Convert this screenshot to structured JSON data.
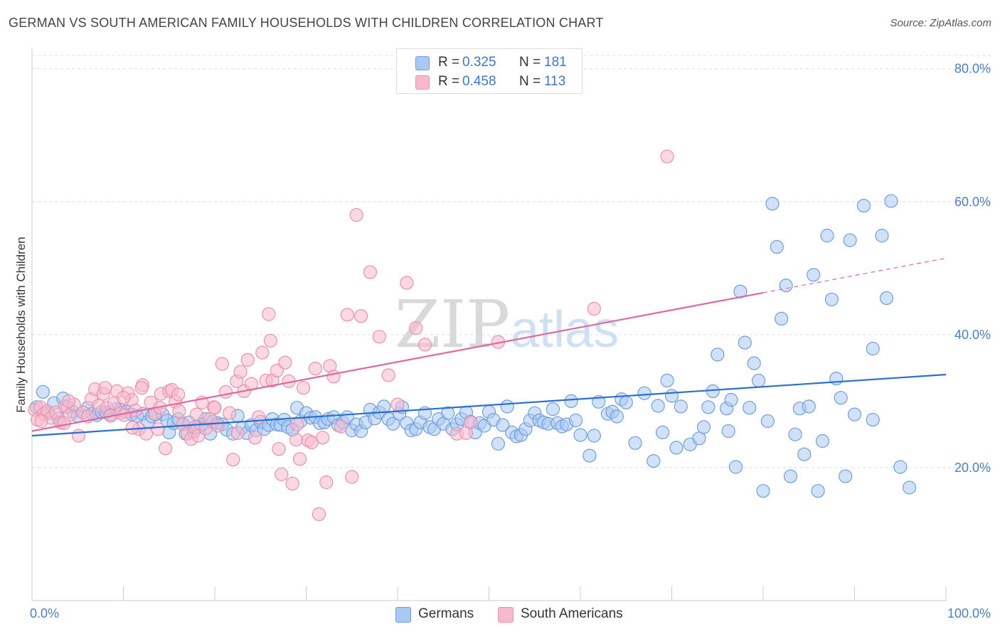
{
  "title": "GERMAN VS SOUTH AMERICAN FAMILY HOUSEHOLDS WITH CHILDREN CORRELATION CHART",
  "source": "Source: ZipAtlas.com",
  "watermark": {
    "zip": "ZIP",
    "atlas": "atlas"
  },
  "legend": {
    "rows": [
      {
        "r_label": "R =",
        "r_value": "0.325",
        "n_label": "N =",
        "n_value": "181",
        "color": "#a9c8f3"
      },
      {
        "r_label": "R =",
        "r_value": "0.458",
        "n_label": "N =",
        "n_value": "113",
        "color": "#f8b9cc"
      }
    ]
  },
  "bottom_legend": [
    {
      "label": "Germans",
      "color": "#a9c8f3"
    },
    {
      "label": "South Americans",
      "color": "#f8b9cc"
    }
  ],
  "colors": {
    "blue_fill": "#a9c8f3",
    "blue_stroke": "#6d9fe0",
    "blue_line": "#2a6fd2",
    "pink_fill": "#f8b9cc",
    "pink_stroke": "#ee8fac",
    "pink_line": "#e0689a",
    "tick_text": "#4a7fd0",
    "grid": "#dddddd"
  },
  "chart_data": {
    "type": "scatter",
    "title": "GERMAN VS SOUTH AMERICAN FAMILY HOUSEHOLDS WITH CHILDREN CORRELATION CHART",
    "xlabel": "",
    "ylabel": "Family Households with Children",
    "xlim": [
      0,
      100
    ],
    "ylim": [
      0,
      82
    ],
    "x_tick_labels": [
      {
        "value": 0,
        "label": "0.0%"
      },
      {
        "value": 100,
        "label": "100.0%"
      }
    ],
    "y_tick_labels": [
      {
        "value": 20,
        "label": "20.0%"
      },
      {
        "value": 40,
        "label": "40.0%"
      },
      {
        "value": 60,
        "label": "60.0%"
      },
      {
        "value": 80,
        "label": "80.0%"
      }
    ],
    "grid": true,
    "legend_position": "top-center",
    "series": [
      {
        "name": "Germans",
        "color": "#a9c8f3",
        "trend": {
          "x": [
            0,
            100
          ],
          "y": [
            24.8,
            34.0
          ]
        },
        "points": [
          [
            0.5,
            29.1
          ],
          [
            1.2,
            31.4
          ],
          [
            1.8,
            28.2
          ],
          [
            2.4,
            29.7
          ],
          [
            2.9,
            27.4
          ],
          [
            3.4,
            30.4
          ],
          [
            3.9,
            29.1
          ],
          [
            4.5,
            28.4
          ],
          [
            5.0,
            27.8
          ],
          [
            5.6,
            28.3
          ],
          [
            6.1,
            29.0
          ],
          [
            6.6,
            28.1
          ],
          [
            7.1,
            27.9
          ],
          [
            7.6,
            28.4
          ],
          [
            8.1,
            28.3
          ],
          [
            8.6,
            28.0
          ],
          [
            9.2,
            28.8
          ],
          [
            9.7,
            28.7
          ],
          [
            10.3,
            28.4
          ],
          [
            10.9,
            28.0
          ],
          [
            11.5,
            27.8
          ],
          [
            12.1,
            28.1
          ],
          [
            12.7,
            26.9
          ],
          [
            13.1,
            27.7
          ],
          [
            13.5,
            28.0
          ],
          [
            14.3,
            28.0
          ],
          [
            14.8,
            27.1
          ],
          [
            15.0,
            25.3
          ],
          [
            15.5,
            26.7
          ],
          [
            16.0,
            27.3
          ],
          [
            16.5,
            26.5
          ],
          [
            16.8,
            25.1
          ],
          [
            17.2,
            26.8
          ],
          [
            17.7,
            25.4
          ],
          [
            18.1,
            26.1
          ],
          [
            18.5,
            26.5
          ],
          [
            19.0,
            27.3
          ],
          [
            19.5,
            25.1
          ],
          [
            19.8,
            26.9
          ],
          [
            20.3,
            26.7
          ],
          [
            20.8,
            26.5
          ],
          [
            21.3,
            25.7
          ],
          [
            22.0,
            25.1
          ],
          [
            22.5,
            27.8
          ],
          [
            23.0,
            26.0
          ],
          [
            23.5,
            25.2
          ],
          [
            24.0,
            26.4
          ],
          [
            24.5,
            25.6
          ],
          [
            25.0,
            26.9
          ],
          [
            25.4,
            25.8
          ],
          [
            25.9,
            26.4
          ],
          [
            26.3,
            27.3
          ],
          [
            26.8,
            26.5
          ],
          [
            27.2,
            26.4
          ],
          [
            27.6,
            27.2
          ],
          [
            28.0,
            26.1
          ],
          [
            28.5,
            25.7
          ],
          [
            29.0,
            29.0
          ],
          [
            29.4,
            27.0
          ],
          [
            30.0,
            28.2
          ],
          [
            30.5,
            27.5
          ],
          [
            31.0,
            27.6
          ],
          [
            31.5,
            26.7
          ],
          [
            32.0,
            26.8
          ],
          [
            32.4,
            27.3
          ],
          [
            33.0,
            27.6
          ],
          [
            33.5,
            26.4
          ],
          [
            34.0,
            26.8
          ],
          [
            34.5,
            27.6
          ],
          [
            35.0,
            25.6
          ],
          [
            35.5,
            26.5
          ],
          [
            36.0,
            25.5
          ],
          [
            36.5,
            26.8
          ],
          [
            37.0,
            28.7
          ],
          [
            37.5,
            27.4
          ],
          [
            38.0,
            28.3
          ],
          [
            38.5,
            29.2
          ],
          [
            39.0,
            27.3
          ],
          [
            39.5,
            26.6
          ],
          [
            40.2,
            28.1
          ],
          [
            40.5,
            29.1
          ],
          [
            41.0,
            26.7
          ],
          [
            41.5,
            25.6
          ],
          [
            42.0,
            25.8
          ],
          [
            42.5,
            26.8
          ],
          [
            43.0,
            28.2
          ],
          [
            43.5,
            26.1
          ],
          [
            44.0,
            25.8
          ],
          [
            44.5,
            27.3
          ],
          [
            45.0,
            26.6
          ],
          [
            45.5,
            28.2
          ],
          [
            46.0,
            25.8
          ],
          [
            46.5,
            26.5
          ],
          [
            47.0,
            27.3
          ],
          [
            47.5,
            28.3
          ],
          [
            48.0,
            26.9
          ],
          [
            48.5,
            25.3
          ],
          [
            49.0,
            26.7
          ],
          [
            49.5,
            26.3
          ],
          [
            50.0,
            28.4
          ],
          [
            50.5,
            27.2
          ],
          [
            51.0,
            23.6
          ],
          [
            51.5,
            26.4
          ],
          [
            52.0,
            29.2
          ],
          [
            52.5,
            25.3
          ],
          [
            53.0,
            24.7
          ],
          [
            53.5,
            24.9
          ],
          [
            54.0,
            25.8
          ],
          [
            54.5,
            27.1
          ],
          [
            55.0,
            28.2
          ],
          [
            55.5,
            27.1
          ],
          [
            56.0,
            26.8
          ],
          [
            56.5,
            26.6
          ],
          [
            57.0,
            28.8
          ],
          [
            57.5,
            26.7
          ],
          [
            58.0,
            26.2
          ],
          [
            58.5,
            26.5
          ],
          [
            59.0,
            30.0
          ],
          [
            59.5,
            27.1
          ],
          [
            60.0,
            24.9
          ],
          [
            61.0,
            21.8
          ],
          [
            61.5,
            24.8
          ],
          [
            62.0,
            29.9
          ],
          [
            63.0,
            28.1
          ],
          [
            63.5,
            28.4
          ],
          [
            64.0,
            27.7
          ],
          [
            64.5,
            30.3
          ],
          [
            65.0,
            29.8
          ],
          [
            66.0,
            23.7
          ],
          [
            67.0,
            31.2
          ],
          [
            68.0,
            21.0
          ],
          [
            68.5,
            29.3
          ],
          [
            69.0,
            25.3
          ],
          [
            69.5,
            33.1
          ],
          [
            70.0,
            30.8
          ],
          [
            70.5,
            23.0
          ],
          [
            71.0,
            29.2
          ],
          [
            72.0,
            23.5
          ],
          [
            73.0,
            24.4
          ],
          [
            73.5,
            26.1
          ],
          [
            74.0,
            29.1
          ],
          [
            75.0,
            37.0
          ],
          [
            76.0,
            28.9
          ],
          [
            76.5,
            30.2
          ],
          [
            77.0,
            20.1
          ],
          [
            77.5,
            46.5
          ],
          [
            78.0,
            38.8
          ],
          [
            78.5,
            29.0
          ],
          [
            79.0,
            35.7
          ],
          [
            79.5,
            33.1
          ],
          [
            80.0,
            16.5
          ],
          [
            81.0,
            59.7
          ],
          [
            81.5,
            53.2
          ],
          [
            82.0,
            42.4
          ],
          [
            82.5,
            47.4
          ],
          [
            83.0,
            18.7
          ],
          [
            84.0,
            28.9
          ],
          [
            84.5,
            22.0
          ],
          [
            85.0,
            29.2
          ],
          [
            85.5,
            49.0
          ],
          [
            86.0,
            16.5
          ],
          [
            87.0,
            54.9
          ],
          [
            87.5,
            45.3
          ],
          [
            88.0,
            33.4
          ],
          [
            89.0,
            18.7
          ],
          [
            89.5,
            54.2
          ],
          [
            91.0,
            59.4
          ],
          [
            92.0,
            37.9
          ],
          [
            93.0,
            54.9
          ],
          [
            93.5,
            45.5
          ],
          [
            94.0,
            60.1
          ],
          [
            95.0,
            20.1
          ],
          [
            96.0,
            17.0
          ],
          [
            92.0,
            27.2
          ],
          [
            90.0,
            28.0
          ],
          [
            86.5,
            24.0
          ],
          [
            83.5,
            25.0
          ],
          [
            80.5,
            27.0
          ],
          [
            88.5,
            30.5
          ],
          [
            76.2,
            25.5
          ],
          [
            74.5,
            31.5
          ]
        ]
      },
      {
        "name": "South Americans",
        "color": "#f8b9cc",
        "trend": {
          "x": [
            0,
            100
          ],
          "y": [
            25.5,
            51.5
          ],
          "solid_until_x": 80
        },
        "points": [
          [
            0.3,
            28.7
          ],
          [
            0.6,
            27.2
          ],
          [
            0.9,
            29.1
          ],
          [
            1.3,
            28.1
          ],
          [
            1.7,
            28.5
          ],
          [
            2.1,
            27.5
          ],
          [
            2.6,
            28.3
          ],
          [
            3.1,
            26.8
          ],
          [
            3.6,
            29.2
          ],
          [
            4.1,
            27.9
          ],
          [
            4.6,
            29.5
          ],
          [
            5.1,
            24.8
          ],
          [
            5.6,
            28.3
          ],
          [
            6.1,
            27.7
          ],
          [
            6.5,
            30.3
          ],
          [
            6.9,
            31.8
          ],
          [
            7.3,
            29.3
          ],
          [
            7.8,
            31.1
          ],
          [
            8.2,
            29.0
          ],
          [
            8.6,
            27.8
          ],
          [
            9.0,
            29.7
          ],
          [
            9.3,
            31.5
          ],
          [
            9.7,
            28.2
          ],
          [
            10.1,
            27.9
          ],
          [
            10.5,
            31.2
          ],
          [
            10.9,
            30.2
          ],
          [
            11.3,
            28.6
          ],
          [
            11.7,
            25.8
          ],
          [
            12.1,
            32.4
          ],
          [
            12.5,
            25.1
          ],
          [
            13.0,
            29.8
          ],
          [
            13.4,
            28.1
          ],
          [
            13.8,
            25.8
          ],
          [
            14.1,
            31.1
          ],
          [
            14.6,
            22.9
          ],
          [
            15.0,
            31.5
          ],
          [
            15.3,
            31.7
          ],
          [
            15.7,
            29.9
          ],
          [
            16.1,
            28.5
          ],
          [
            16.5,
            26.5
          ],
          [
            17.0,
            25.1
          ],
          [
            17.4,
            24.3
          ],
          [
            17.8,
            26.1
          ],
          [
            18.2,
            24.8
          ],
          [
            18.6,
            29.8
          ],
          [
            19.0,
            25.9
          ],
          [
            19.5,
            27.3
          ],
          [
            19.9,
            29.1
          ],
          [
            20.3,
            26.3
          ],
          [
            20.8,
            35.6
          ],
          [
            21.2,
            31.4
          ],
          [
            21.6,
            28.2
          ],
          [
            22.0,
            21.2
          ],
          [
            22.4,
            33.0
          ],
          [
            22.8,
            34.4
          ],
          [
            23.2,
            31.5
          ],
          [
            23.6,
            36.2
          ],
          [
            24.0,
            32.6
          ],
          [
            24.4,
            24.5
          ],
          [
            24.8,
            27.6
          ],
          [
            25.2,
            37.3
          ],
          [
            25.6,
            33.1
          ],
          [
            25.9,
            43.1
          ],
          [
            26.1,
            39.1
          ],
          [
            26.3,
            33.1
          ],
          [
            26.8,
            34.6
          ],
          [
            27.3,
            19.0
          ],
          [
            27.7,
            35.8
          ],
          [
            28.1,
            33.0
          ],
          [
            28.5,
            17.6
          ],
          [
            28.9,
            24.2
          ],
          [
            29.3,
            21.3
          ],
          [
            29.7,
            32.0
          ],
          [
            30.2,
            24.1
          ],
          [
            30.6,
            23.8
          ],
          [
            31.0,
            34.9
          ],
          [
            31.4,
            13.0
          ],
          [
            31.8,
            24.5
          ],
          [
            32.2,
            17.8
          ],
          [
            32.6,
            35.3
          ],
          [
            33.0,
            33.7
          ],
          [
            33.8,
            26.2
          ],
          [
            34.5,
            43.0
          ],
          [
            35.0,
            18.6
          ],
          [
            35.5,
            58.0
          ],
          [
            36.0,
            42.8
          ],
          [
            37.0,
            49.4
          ],
          [
            38.0,
            39.7
          ],
          [
            39.0,
            33.9
          ],
          [
            40.0,
            29.5
          ],
          [
            41.0,
            47.8
          ],
          [
            42.0,
            41.0
          ],
          [
            43.0,
            38.5
          ],
          [
            46.5,
            25.1
          ],
          [
            47.5,
            25.2
          ],
          [
            48.0,
            26.8
          ],
          [
            51.0,
            38.9
          ],
          [
            61.5,
            43.9
          ],
          [
            69.5,
            66.8
          ],
          [
            27.0,
            22.8
          ],
          [
            29.0,
            26.5
          ],
          [
            20.0,
            29.0
          ],
          [
            18.0,
            28.0
          ],
          [
            16.0,
            31.0
          ],
          [
            10.0,
            30.5
          ],
          [
            8.0,
            32.0
          ],
          [
            4.0,
            30.0
          ],
          [
            3.5,
            26.7
          ],
          [
            1.0,
            27.0
          ],
          [
            11.0,
            26.0
          ],
          [
            14.0,
            29.0
          ],
          [
            12.0,
            32.0
          ],
          [
            22.5,
            25.2
          ]
        ]
      }
    ]
  }
}
